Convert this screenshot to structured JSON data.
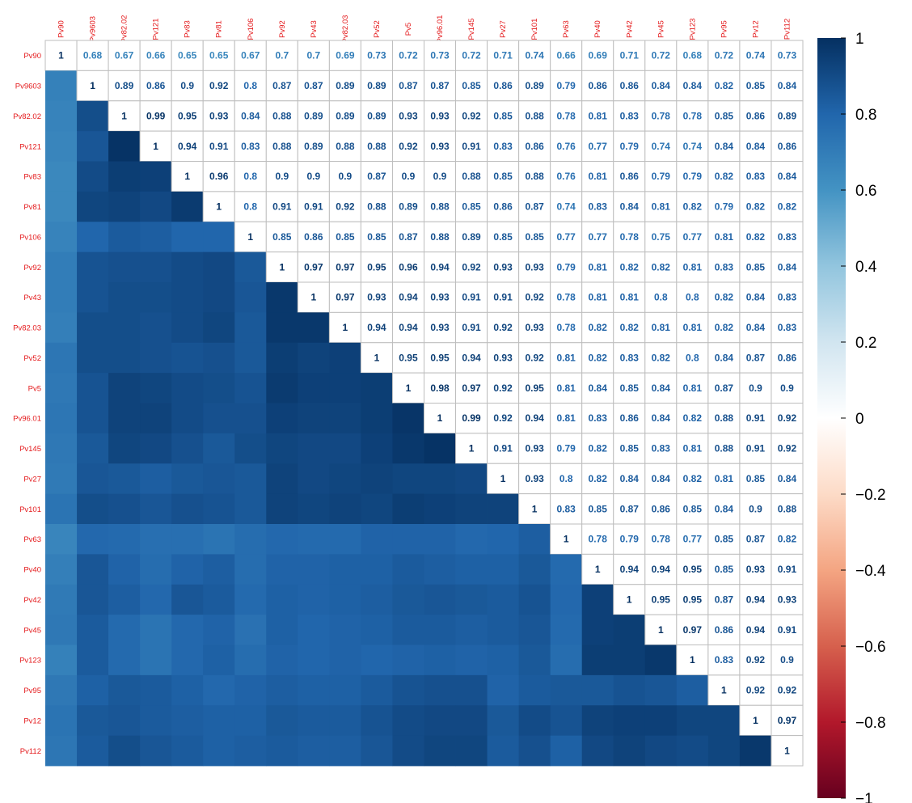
{
  "chart_data": {
    "type": "heatmap",
    "title": "",
    "variables": [
      "Pv90",
      "Pv9603",
      "Pv82.02",
      "Pv121",
      "Pv83",
      "Pv81",
      "Pv106",
      "Pv92",
      "Pv43",
      "Pv82.03",
      "Pv52",
      "Pv5",
      "Pv96.01",
      "Pv145",
      "Pv27",
      "Pv101",
      "Pv63",
      "Pv40",
      "Pv42",
      "Pv45",
      "Pv123",
      "Pv95",
      "Pv12",
      "Pv112"
    ],
    "upper_triangle_display": "numbers",
    "lower_triangle_display": "colored squares",
    "matrix": [
      [
        1,
        0.68,
        0.67,
        0.66,
        0.65,
        0.65,
        0.67,
        0.7,
        0.7,
        0.69,
        0.73,
        0.72,
        0.73,
        0.72,
        0.71,
        0.74,
        0.66,
        0.69,
        0.71,
        0.72,
        0.68,
        0.72,
        0.74,
        0.73
      ],
      [
        0.68,
        1,
        0.89,
        0.86,
        0.9,
        0.92,
        0.8,
        0.87,
        0.87,
        0.89,
        0.89,
        0.87,
        0.87,
        0.85,
        0.86,
        0.89,
        0.79,
        0.86,
        0.86,
        0.84,
        0.84,
        0.82,
        0.85,
        0.84
      ],
      [
        0.67,
        0.89,
        1,
        0.99,
        0.95,
        0.93,
        0.84,
        0.88,
        0.89,
        0.89,
        0.89,
        0.93,
        0.93,
        0.92,
        0.85,
        0.88,
        0.78,
        0.81,
        0.83,
        0.78,
        0.78,
        0.85,
        0.86,
        0.89
      ],
      [
        0.66,
        0.86,
        0.99,
        1,
        0.94,
        0.91,
        0.83,
        0.88,
        0.89,
        0.88,
        0.88,
        0.92,
        0.93,
        0.91,
        0.83,
        0.86,
        0.76,
        0.77,
        0.79,
        0.74,
        0.74,
        0.84,
        0.84,
        0.86
      ],
      [
        0.65,
        0.9,
        0.95,
        0.94,
        1,
        0.96,
        0.8,
        0.9,
        0.9,
        0.9,
        0.87,
        0.9,
        0.9,
        0.88,
        0.85,
        0.88,
        0.76,
        0.81,
        0.86,
        0.79,
        0.79,
        0.82,
        0.83,
        0.84
      ],
      [
        0.65,
        0.92,
        0.93,
        0.91,
        0.96,
        1,
        0.8,
        0.91,
        0.91,
        0.92,
        0.88,
        0.89,
        0.88,
        0.85,
        0.86,
        0.87,
        0.74,
        0.83,
        0.84,
        0.81,
        0.82,
        0.79,
        0.82,
        0.82
      ],
      [
        0.67,
        0.8,
        0.84,
        0.83,
        0.8,
        0.8,
        1,
        0.85,
        0.86,
        0.85,
        0.85,
        0.87,
        0.88,
        0.89,
        0.85,
        0.85,
        0.77,
        0.77,
        0.78,
        0.75,
        0.77,
        0.81,
        0.82,
        0.83
      ],
      [
        0.7,
        0.87,
        0.88,
        0.88,
        0.9,
        0.91,
        0.85,
        1,
        0.97,
        0.97,
        0.95,
        0.96,
        0.94,
        0.92,
        0.93,
        0.93,
        0.79,
        0.81,
        0.82,
        0.82,
        0.81,
        0.83,
        0.85,
        0.84
      ],
      [
        0.7,
        0.87,
        0.89,
        0.89,
        0.9,
        0.91,
        0.86,
        0.97,
        1,
        0.97,
        0.93,
        0.94,
        0.93,
        0.91,
        0.91,
        0.92,
        0.78,
        0.81,
        0.81,
        0.8,
        0.8,
        0.82,
        0.84,
        0.83
      ],
      [
        0.69,
        0.89,
        0.89,
        0.88,
        0.9,
        0.92,
        0.85,
        0.97,
        0.97,
        1,
        0.94,
        0.94,
        0.93,
        0.91,
        0.92,
        0.93,
        0.78,
        0.82,
        0.82,
        0.81,
        0.81,
        0.82,
        0.84,
        0.83
      ],
      [
        0.73,
        0.89,
        0.89,
        0.88,
        0.87,
        0.88,
        0.85,
        0.95,
        0.93,
        0.94,
        1,
        0.95,
        0.95,
        0.94,
        0.93,
        0.92,
        0.81,
        0.82,
        0.83,
        0.82,
        0.8,
        0.84,
        0.87,
        0.86
      ],
      [
        0.72,
        0.87,
        0.93,
        0.92,
        0.9,
        0.89,
        0.87,
        0.96,
        0.94,
        0.94,
        0.95,
        1,
        0.98,
        0.97,
        0.92,
        0.95,
        0.81,
        0.84,
        0.85,
        0.84,
        0.81,
        0.87,
        0.9,
        0.9
      ],
      [
        0.73,
        0.87,
        0.93,
        0.93,
        0.9,
        0.88,
        0.88,
        0.94,
        0.93,
        0.93,
        0.95,
        0.98,
        1,
        0.99,
        0.92,
        0.94,
        0.81,
        0.83,
        0.86,
        0.84,
        0.82,
        0.88,
        0.91,
        0.92
      ],
      [
        0.72,
        0.85,
        0.92,
        0.91,
        0.88,
        0.85,
        0.89,
        0.92,
        0.91,
        0.91,
        0.94,
        0.97,
        0.99,
        1,
        0.91,
        0.93,
        0.79,
        0.82,
        0.85,
        0.83,
        0.81,
        0.88,
        0.91,
        0.92
      ],
      [
        0.71,
        0.86,
        0.85,
        0.83,
        0.85,
        0.86,
        0.85,
        0.93,
        0.91,
        0.92,
        0.93,
        0.92,
        0.92,
        0.91,
        1,
        0.93,
        0.8,
        0.82,
        0.84,
        0.84,
        0.82,
        0.81,
        0.85,
        0.84
      ],
      [
        0.74,
        0.89,
        0.88,
        0.86,
        0.88,
        0.87,
        0.85,
        0.93,
        0.92,
        0.93,
        0.92,
        0.95,
        0.94,
        0.93,
        0.93,
        1,
        0.83,
        0.85,
        0.87,
        0.86,
        0.85,
        0.84,
        0.9,
        0.88
      ],
      [
        0.66,
        0.79,
        0.78,
        0.76,
        0.76,
        0.74,
        0.77,
        0.79,
        0.78,
        0.78,
        0.81,
        0.81,
        0.81,
        0.79,
        0.8,
        0.83,
        1,
        0.78,
        0.79,
        0.78,
        0.77,
        0.85,
        0.87,
        0.82
      ],
      [
        0.69,
        0.86,
        0.81,
        0.77,
        0.81,
        0.83,
        0.77,
        0.81,
        0.81,
        0.82,
        0.82,
        0.84,
        0.83,
        0.82,
        0.82,
        0.85,
        0.78,
        1,
        0.94,
        0.94,
        0.95,
        0.85,
        0.93,
        0.91
      ],
      [
        0.71,
        0.86,
        0.83,
        0.79,
        0.86,
        0.84,
        0.78,
        0.82,
        0.81,
        0.82,
        0.83,
        0.85,
        0.86,
        0.85,
        0.84,
        0.87,
        0.79,
        0.94,
        1,
        0.95,
        0.95,
        0.87,
        0.94,
        0.93
      ],
      [
        0.72,
        0.84,
        0.78,
        0.74,
        0.79,
        0.81,
        0.75,
        0.82,
        0.8,
        0.81,
        0.82,
        0.84,
        0.84,
        0.83,
        0.84,
        0.86,
        0.78,
        0.94,
        0.95,
        1,
        0.97,
        0.86,
        0.94,
        0.91
      ],
      [
        0.68,
        0.84,
        0.78,
        0.74,
        0.79,
        0.82,
        0.77,
        0.81,
        0.8,
        0.81,
        0.8,
        0.81,
        0.82,
        0.81,
        0.82,
        0.85,
        0.77,
        0.95,
        0.95,
        0.97,
        1,
        0.83,
        0.92,
        0.9
      ],
      [
        0.72,
        0.82,
        0.85,
        0.84,
        0.82,
        0.79,
        0.81,
        0.83,
        0.82,
        0.82,
        0.84,
        0.87,
        0.88,
        0.88,
        0.81,
        0.84,
        0.85,
        0.85,
        0.87,
        0.86,
        0.83,
        1,
        0.92,
        0.92
      ],
      [
        0.74,
        0.85,
        0.86,
        0.84,
        0.83,
        0.82,
        0.82,
        0.85,
        0.84,
        0.84,
        0.87,
        0.9,
        0.91,
        0.91,
        0.85,
        0.9,
        0.87,
        0.93,
        0.94,
        0.94,
        0.92,
        0.92,
        1,
        0.97
      ],
      [
        0.73,
        0.84,
        0.89,
        0.86,
        0.84,
        0.82,
        0.83,
        0.84,
        0.83,
        0.83,
        0.86,
        0.9,
        0.92,
        0.92,
        0.84,
        0.88,
        0.82,
        0.91,
        0.93,
        0.91,
        0.9,
        0.92,
        0.97,
        1
      ]
    ],
    "legend": {
      "position": "right",
      "range": [
        -1,
        1
      ],
      "tick_labels": [
        "1",
        "0.8",
        "0.6",
        "0.4",
        "0.2",
        "0",
        "−0.2",
        "−0.4",
        "−0.6",
        "−0.8",
        "−1"
      ],
      "tick_values": [
        1,
        0.8,
        0.6,
        0.4,
        0.2,
        0,
        -0.2,
        -0.4,
        -0.6,
        -0.8,
        -1
      ]
    },
    "colors": {
      "label_color": "#e41a1c",
      "grid_color": "#bebebe",
      "palette_stops": [
        "#67001f",
        "#b2182b",
        "#d6604d",
        "#f4a582",
        "#fddbc7",
        "#ffffff",
        "#d1e5f0",
        "#92c5de",
        "#4393c3",
        "#2166ac",
        "#053061"
      ]
    }
  }
}
